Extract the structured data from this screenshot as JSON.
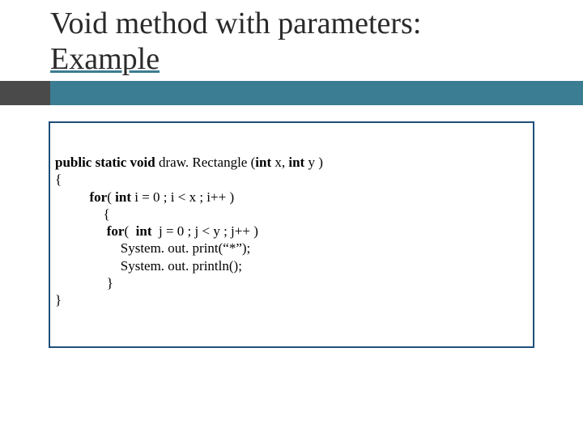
{
  "title": {
    "line1": "Void method with parameters:",
    "line2": "Example",
    "color": "#2a2a2a",
    "fontsize": 38
  },
  "rule": {
    "dark_color": "#4a4a4a",
    "teal_color": "#3b7d92",
    "height": 30,
    "dark_width": 62
  },
  "codebox": {
    "border_color": "#1f4e79",
    "background": "#ffffff"
  },
  "code": {
    "l1_kw1": "public static void",
    "l1_mid": " draw. Rectangle (",
    "l1_kw2": "int",
    "l1_mid2": " x, ",
    "l1_kw3": "int",
    "l1_end": " y )",
    "l2": "{",
    "l3_indent": "          ",
    "l3_kw": "for",
    "l3_mid": "( ",
    "l3_kw2": "int",
    "l3_end": " i = 0 ; i < x ; i++ )",
    "l4": "              {",
    "l5_indent": "               ",
    "l5_kw": "for",
    "l5_mid": "(  ",
    "l5_kw2": "int",
    "l5_end": "  j = 0 ; j < y ; j++ )",
    "l6": "                   System. out. print(“*”);",
    "l7": "                   System. out. println();",
    "l8": "               }",
    "l9": "}"
  }
}
